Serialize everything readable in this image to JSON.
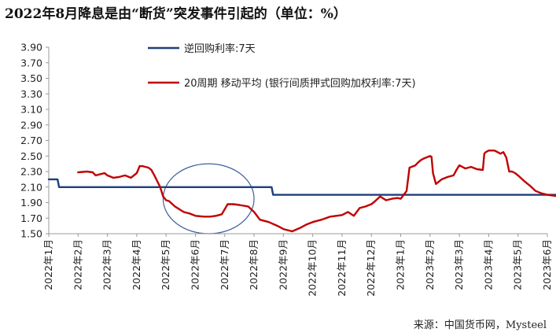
{
  "title": "2022年8月降息是由“断货”突发事件引起的（单位：%）",
  "source": "来源：中国货币网，Mysteel",
  "colors": {
    "series1": "#1f3f7a",
    "series2": "#c00000",
    "axis": "#999999",
    "annotation": "#3f5f9f"
  },
  "chart_data": {
    "type": "line",
    "title": "2022年8月降息是由“断货”突发事件引起的（单位：%）",
    "xlabel": "",
    "ylabel": "",
    "ylim": [
      1.5,
      3.9
    ],
    "yticks": [
      "1.50",
      "1.70",
      "1.90",
      "2.10",
      "2.30",
      "2.50",
      "2.70",
      "2.90",
      "3.10",
      "3.30",
      "3.50",
      "3.70",
      "3.90"
    ],
    "categories": [
      "2022年1月",
      "2022年2月",
      "2022年3月",
      "2022年4月",
      "2022年5月",
      "2022年6月",
      "2022年7月",
      "2022年8月",
      "2022年9月",
      "2022年10月",
      "2022年11月",
      "2022年12月",
      "2023年1月",
      "2023年2月",
      "2023年3月",
      "2023年4月",
      "2023年5月",
      "2023年6月"
    ],
    "legend_position": "top-center",
    "grid": false,
    "annotation": "ellipse around 2022年5月–2022年7月",
    "series": [
      {
        "name": "逆回购利率:7天",
        "color": "#1f3f7a",
        "x": [
          0.0,
          0.3,
          0.35,
          7.6,
          7.65,
          17.5
        ],
        "values": [
          2.2,
          2.2,
          2.1,
          2.1,
          2.0,
          2.0
        ]
      },
      {
        "name": "20周期 移动平均 (银行间质押式回购加权利率:7天)",
        "color": "#c00000",
        "x": [
          1.0,
          1.3,
          1.5,
          1.6,
          1.9,
          2.0,
          2.2,
          2.4,
          2.6,
          2.8,
          3.0,
          3.1,
          3.2,
          3.3,
          3.4,
          3.5,
          3.6,
          3.8,
          3.9,
          4.0,
          4.1,
          4.3,
          4.6,
          4.8,
          5.0,
          5.3,
          5.5,
          5.7,
          5.9,
          6.1,
          6.3,
          6.5,
          6.8,
          7.0,
          7.2,
          7.5,
          7.8,
          8.0,
          8.3,
          8.6,
          8.8,
          9.0,
          9.3,
          9.6,
          9.8,
          10.0,
          10.2,
          10.4,
          10.6,
          10.8,
          11.0,
          11.1,
          11.3,
          11.5,
          11.7,
          11.9,
          12.0,
          12.1,
          12.2,
          12.3,
          12.5,
          12.6,
          12.7,
          12.8,
          13.0,
          13.05,
          13.1,
          13.2,
          13.4,
          13.6,
          13.8,
          13.9,
          14.0,
          14.2,
          14.4,
          14.6,
          14.8,
          14.85,
          14.9,
          15.0,
          15.2,
          15.4,
          15.5,
          15.6,
          15.7,
          15.8,
          15.9,
          16.0,
          16.2,
          16.4,
          16.6,
          16.8,
          17.0,
          17.2,
          17.4,
          17.5
        ],
        "values": [
          2.29,
          2.3,
          2.29,
          2.25,
          2.28,
          2.25,
          2.22,
          2.23,
          2.25,
          2.22,
          2.28,
          2.37,
          2.37,
          2.36,
          2.35,
          2.32,
          2.25,
          2.1,
          1.98,
          1.93,
          1.92,
          1.85,
          1.78,
          1.76,
          1.73,
          1.72,
          1.72,
          1.73,
          1.75,
          1.88,
          1.88,
          1.87,
          1.85,
          1.78,
          1.68,
          1.65,
          1.6,
          1.56,
          1.53,
          1.58,
          1.62,
          1.65,
          1.68,
          1.72,
          1.73,
          1.74,
          1.78,
          1.73,
          1.83,
          1.85,
          1.88,
          1.91,
          1.98,
          1.93,
          1.95,
          1.96,
          1.95,
          2.0,
          2.05,
          2.35,
          2.38,
          2.42,
          2.45,
          2.47,
          2.5,
          2.49,
          2.28,
          2.14,
          2.2,
          2.23,
          2.25,
          2.32,
          2.38,
          2.34,
          2.36,
          2.33,
          2.32,
          2.53,
          2.55,
          2.57,
          2.57,
          2.53,
          2.55,
          2.48,
          2.3,
          2.3,
          2.28,
          2.25,
          2.18,
          2.12,
          2.05,
          2.02,
          2.0,
          1.99,
          1.98,
          1.98
        ]
      }
    ]
  }
}
